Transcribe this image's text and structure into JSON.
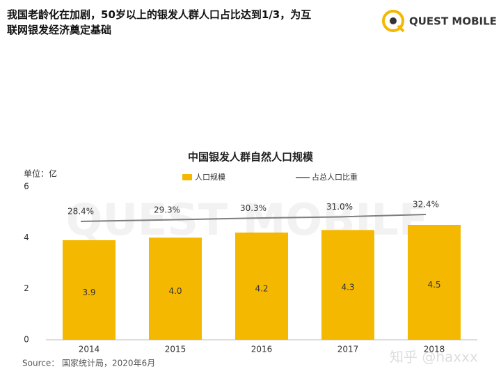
{
  "header": {
    "title_lines": [
      "我国老龄化在加剧，50岁以上的银发人群人口占比达到1/3，为互",
      "联网银发经济奠定基础"
    ],
    "logo": "QUEST MOBILE"
  },
  "chart_data": {
    "type": "bar",
    "title": "中国银发人群自然人口规模",
    "unit": "单位：亿",
    "categories": [
      "2014",
      "2015",
      "2016",
      "2017",
      "2018"
    ],
    "series": [
      {
        "name": "人口规模",
        "type": "bar",
        "color": "#f5b800",
        "values": [
          3.9,
          4.0,
          4.2,
          4.3,
          4.5
        ],
        "value_labels": [
          "3.9",
          "4.0",
          "4.2",
          "4.3",
          "4.5"
        ]
      },
      {
        "name": "占总人口比重",
        "type": "line",
        "color": "#7f7f7f",
        "values": [
          28.4,
          29.3,
          30.3,
          31.0,
          32.4
        ],
        "value_labels": [
          "28.4%",
          "29.3%",
          "30.3%",
          "31.0%",
          "32.4%"
        ]
      }
    ],
    "ylim": [
      0,
      6
    ],
    "yticks": [
      0,
      2,
      4,
      6
    ]
  },
  "footer": {
    "source": "Source：  国家统计局，2020年6月",
    "watermark": "知乎 @haxxx"
  }
}
